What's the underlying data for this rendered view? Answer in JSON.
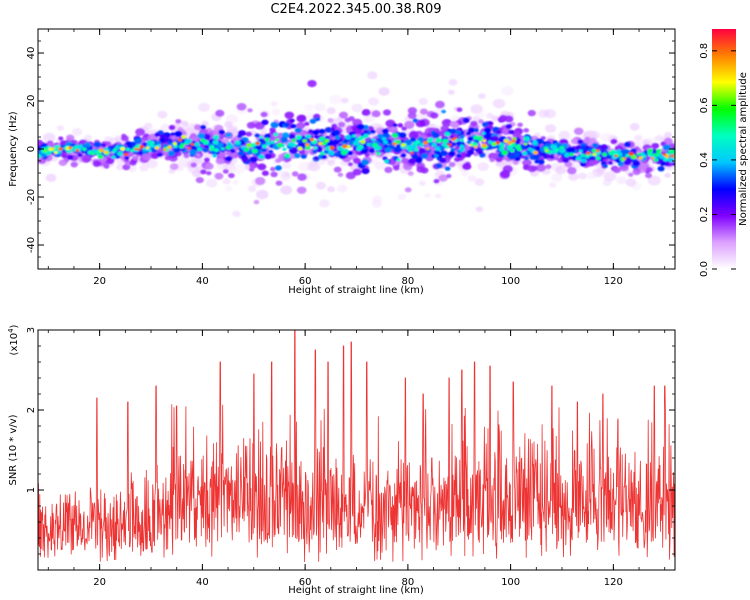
{
  "title": "C2E4.2022.345.00.38.R09",
  "chart_data": [
    {
      "type": "heatmap",
      "xlabel": "Height of straight line (km)",
      "ylabel": "Frequency (Hz)",
      "xlim": [
        8,
        132
      ],
      "ylim": [
        -50,
        50
      ],
      "xticks": [
        20,
        40,
        60,
        80,
        100,
        120
      ],
      "yticks": [
        -40,
        -20,
        0,
        20,
        40
      ],
      "colorbar": {
        "label": "Normalized spectral amplitude",
        "range": [
          0,
          0.88
        ],
        "ticks": [
          "0.0",
          "0.2",
          "0.4",
          "0.6",
          "0.8"
        ],
        "colormap": [
          "#ffffff",
          "#dca0ff",
          "#8000ff",
          "#0000ff",
          "#00c8ff",
          "#00ffc0",
          "#00ff00",
          "#ffff00",
          "#ff8000",
          "#ff0040"
        ]
      },
      "ridge_center_hz": [
        {
          "x": 8,
          "y": -2
        },
        {
          "x": 14,
          "y": 0.5
        },
        {
          "x": 20,
          "y": -1.5
        },
        {
          "x": 26,
          "y": -0.5
        },
        {
          "x": 32,
          "y": 1.5
        },
        {
          "x": 38,
          "y": 2
        },
        {
          "x": 44,
          "y": 0.5
        },
        {
          "x": 50,
          "y": 1
        },
        {
          "x": 56,
          "y": 2.5
        },
        {
          "x": 62,
          "y": 3
        },
        {
          "x": 68,
          "y": 2
        },
        {
          "x": 74,
          "y": 1.5
        },
        {
          "x": 80,
          "y": 1
        },
        {
          "x": 86,
          "y": 1.5
        },
        {
          "x": 92,
          "y": 3
        },
        {
          "x": 98,
          "y": 2
        },
        {
          "x": 104,
          "y": 0.5
        },
        {
          "x": 110,
          "y": -1
        },
        {
          "x": 116,
          "y": -2
        },
        {
          "x": 122,
          "y": -3
        },
        {
          "x": 132,
          "y": -3
        }
      ],
      "ridge_spread_hz": [
        {
          "x": 8,
          "y": 5
        },
        {
          "x": 20,
          "y": 5
        },
        {
          "x": 30,
          "y": 6
        },
        {
          "x": 40,
          "y": 10
        },
        {
          "x": 50,
          "y": 12
        },
        {
          "x": 62,
          "y": 13
        },
        {
          "x": 75,
          "y": 12
        },
        {
          "x": 90,
          "y": 13
        },
        {
          "x": 100,
          "y": 11
        },
        {
          "x": 110,
          "y": 7
        },
        {
          "x": 120,
          "y": 6
        },
        {
          "x": 132,
          "y": 7
        }
      ]
    },
    {
      "type": "line",
      "xlabel": "Height of straight line (km)",
      "ylabel": "SNR (10 * v/v)",
      "multiplier": "(x10",
      "multiplier_exp": "4",
      "multiplier_close": ")",
      "xlim": [
        8,
        132
      ],
      "ylim": [
        0,
        3
      ],
      "xticks": [
        20,
        40,
        60,
        80,
        100,
        120
      ],
      "yticks": [
        1,
        2,
        3
      ],
      "color": "#ee3333",
      "peaks": [
        {
          "x": 19.5,
          "y": 2.15
        },
        {
          "x": 25.5,
          "y": 2.1
        },
        {
          "x": 31,
          "y": 2.3
        },
        {
          "x": 35,
          "y": 2.05
        },
        {
          "x": 43.5,
          "y": 2.6
        },
        {
          "x": 50,
          "y": 2.45
        },
        {
          "x": 53.5,
          "y": 2.6
        },
        {
          "x": 58,
          "y": 3.0
        },
        {
          "x": 62,
          "y": 2.75
        },
        {
          "x": 64.5,
          "y": 2.6
        },
        {
          "x": 67.5,
          "y": 2.8
        },
        {
          "x": 69,
          "y": 2.85
        },
        {
          "x": 72,
          "y": 2.6
        },
        {
          "x": 79.5,
          "y": 2.4
        },
        {
          "x": 83,
          "y": 2.2
        },
        {
          "x": 88,
          "y": 2.4
        },
        {
          "x": 90.5,
          "y": 2.5
        },
        {
          "x": 93,
          "y": 2.6
        },
        {
          "x": 96,
          "y": 2.55
        },
        {
          "x": 100.5,
          "y": 2.35
        },
        {
          "x": 108,
          "y": 2.3
        },
        {
          "x": 113,
          "y": 2.1
        },
        {
          "x": 118,
          "y": 2.2
        },
        {
          "x": 128,
          "y": 2.3
        },
        {
          "x": 130,
          "y": 2.3
        }
      ]
    }
  ]
}
